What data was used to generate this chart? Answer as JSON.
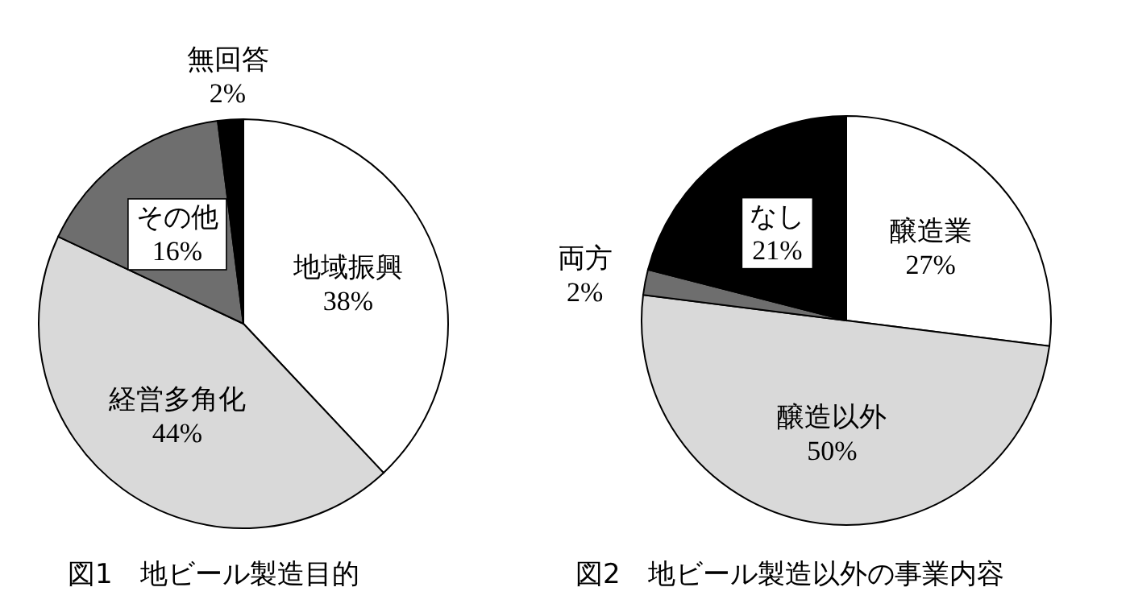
{
  "chart_data": [
    {
      "type": "pie",
      "title": "図1　地ビール製造目的",
      "categories": [
        "地域振興",
        "経営多角化",
        "その他",
        "無回答"
      ],
      "values": [
        38,
        44,
        16,
        2
      ],
      "value_labels": [
        "38%",
        "44%",
        "16%",
        "2%"
      ],
      "colors": [
        "#ffffff",
        "#d9d9d9",
        "#6e6e6e",
        "#000000"
      ]
    },
    {
      "type": "pie",
      "title": "図2　地ビール製造以外の事業内容",
      "categories": [
        "醸造業",
        "醸造以外",
        "両方",
        "なし"
      ],
      "values": [
        27,
        50,
        2,
        21
      ],
      "value_labels": [
        "27%",
        "50%",
        "2%",
        "21%"
      ],
      "colors": [
        "#ffffff",
        "#d9d9d9",
        "#6e6e6e",
        "#000000"
      ]
    }
  ]
}
